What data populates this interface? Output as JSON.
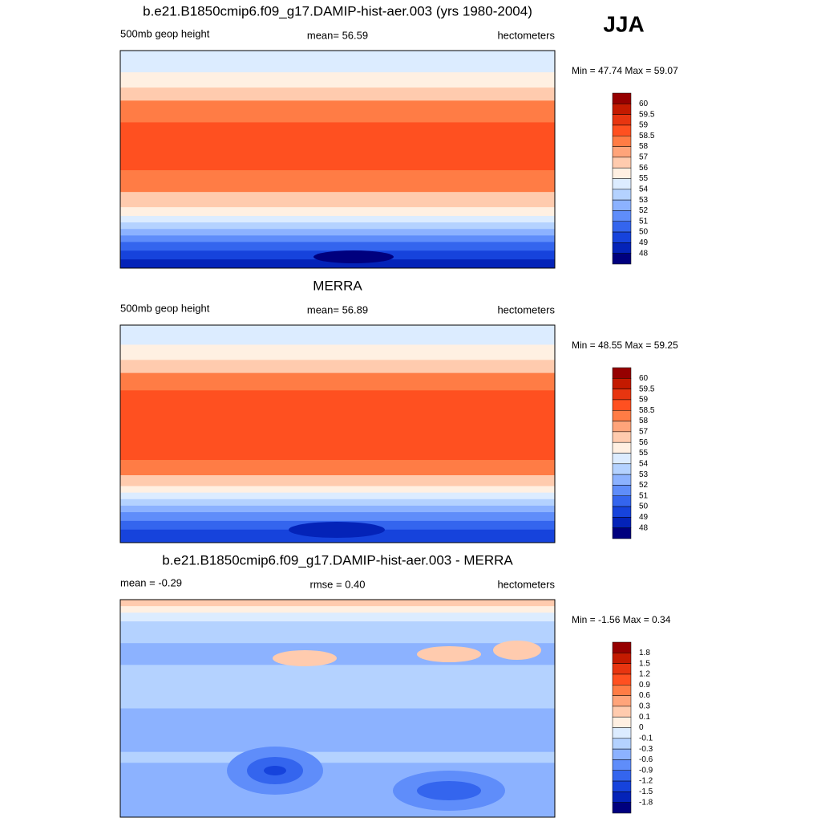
{
  "season": "JJA",
  "palette": [
    "#960000",
    "#c41a00",
    "#e83510",
    "#ff5020",
    "#ff7c45",
    "#ffa47a",
    "#ffcbae",
    "#fff0e2",
    "#dcecff",
    "#b4d2ff",
    "#8cb2ff",
    "#5f8dfa",
    "#3465ee",
    "#1643dc",
    "#0423b8",
    "#00007e"
  ],
  "panels": [
    {
      "title": "b.e21.B1850cmip6.f09_g17.DAMIP-hist-aer.003 (yrs 1980-2004)",
      "left": "500mb geop height",
      "center": "mean=  56.59",
      "right": "hectometers",
      "minmax": "Min =  47.74 Max =  59.07",
      "levels": [
        60,
        59.5,
        59,
        58.5,
        58,
        57,
        56,
        55,
        54,
        53,
        52,
        51,
        50,
        49,
        48
      ]
    },
    {
      "title": "MERRA",
      "left": "500mb geop height",
      "center": "mean=  56.89",
      "right": "hectometers",
      "minmax": "Min =  48.55 Max =  59.25",
      "levels": [
        60,
        59.5,
        59,
        58.5,
        58,
        57,
        56,
        55,
        54,
        53,
        52,
        51,
        50,
        49,
        48
      ]
    },
    {
      "title": "b.e21.B1850cmip6.f09_g17.DAMIP-hist-aer.003 - MERRA",
      "left": "mean =  -0.29",
      "center": "rmse =   0.40",
      "right": "hectometers",
      "minmax": "Min =  -1.56 Max =   0.34",
      "levels": [
        1.8,
        1.5,
        1.2,
        0.9,
        0.6,
        0.3,
        0.1,
        0,
        -0.1,
        -0.3,
        -0.6,
        -0.9,
        -1.2,
        -1.5,
        -1.8
      ]
    }
  ]
}
